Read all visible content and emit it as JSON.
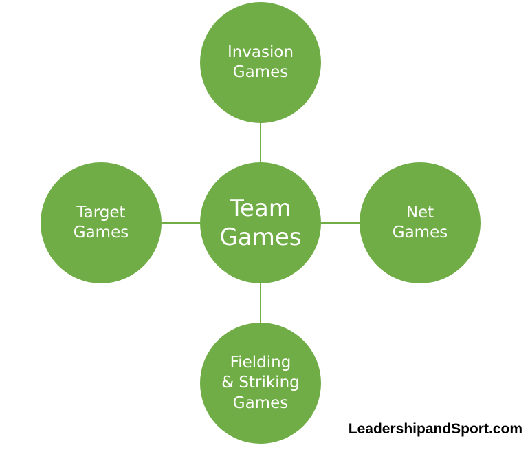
{
  "diagram": {
    "nodes": {
      "invasion": {
        "lines": [
          "Invasion",
          "Games"
        ]
      },
      "target": {
        "lines": [
          "Target",
          "Games"
        ]
      },
      "center": {
        "lines": [
          "Team",
          "Games"
        ]
      },
      "net": {
        "lines": [
          "Net",
          "Games"
        ]
      },
      "fielding": {
        "lines": [
          "Fielding",
          "& Striking",
          "Games"
        ]
      }
    },
    "edges": [
      [
        "center",
        "invasion"
      ],
      [
        "center",
        "target"
      ],
      [
        "center",
        "net"
      ],
      [
        "center",
        "fielding"
      ]
    ],
    "colors": {
      "node_fill": "#70ad47",
      "node_text": "#ffffff",
      "connector": "#70ad47"
    }
  },
  "watermark": "LeadershipandSport.com"
}
